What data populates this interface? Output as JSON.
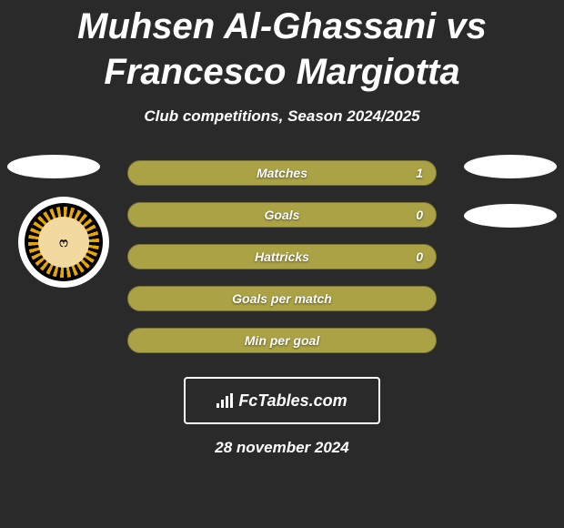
{
  "title": "Muhsen Al-Ghassani vs Francesco Margiotta",
  "subtitle": "Club competitions, Season 2024/2025",
  "date": "28 november 2024",
  "brand": "FcTables.com",
  "badge_glyph": "ෆ",
  "colors": {
    "background": "#2a2a2a",
    "bar_fill": "#aaa245",
    "bar_border": "#7a7333",
    "text": "#ffffff",
    "badge_gold": "#e6a800",
    "badge_inner": "#f1d9a0"
  },
  "stats": [
    {
      "label": "Matches",
      "value": "1",
      "fill_pct": 100
    },
    {
      "label": "Goals",
      "value": "0",
      "fill_pct": 100
    },
    {
      "label": "Hattricks",
      "value": "0",
      "fill_pct": 100
    },
    {
      "label": "Goals per match",
      "value": "",
      "fill_pct": 100
    },
    {
      "label": "Min per goal",
      "value": "",
      "fill_pct": 100
    }
  ]
}
